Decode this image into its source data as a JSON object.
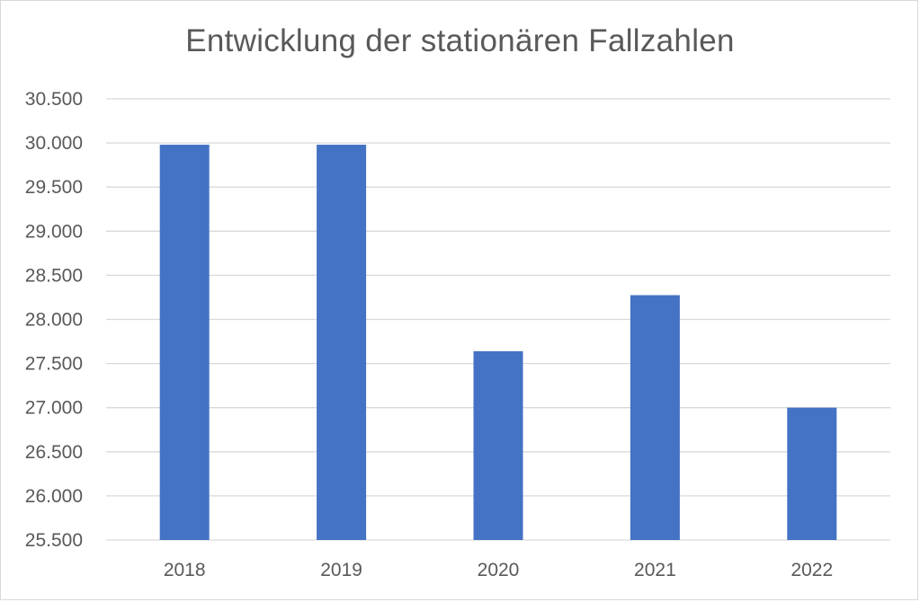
{
  "chart_data": {
    "type": "bar",
    "title": "Entwicklung der stationären Fallzahlen",
    "categories": [
      "2018",
      "2019",
      "2020",
      "2021",
      "2022"
    ],
    "values": [
      29980,
      29980,
      27640,
      28275,
      27000
    ],
    "ylim": [
      25500,
      30500
    ],
    "y_ticks": [
      25500,
      26000,
      26500,
      27000,
      27500,
      28000,
      28500,
      29000,
      29500,
      30000,
      30500
    ],
    "y_tick_labels": [
      "25.500",
      "26.000",
      "26.500",
      "27.000",
      "27.500",
      "28.000",
      "28.500",
      "29.000",
      "29.500",
      "30.000",
      "30.500"
    ],
    "xlabel": "",
    "ylabel": "",
    "grid": true,
    "legend": "none",
    "bar_color": "#4472c4",
    "grid_color": "#d9d9d9",
    "text_color": "#595959"
  }
}
